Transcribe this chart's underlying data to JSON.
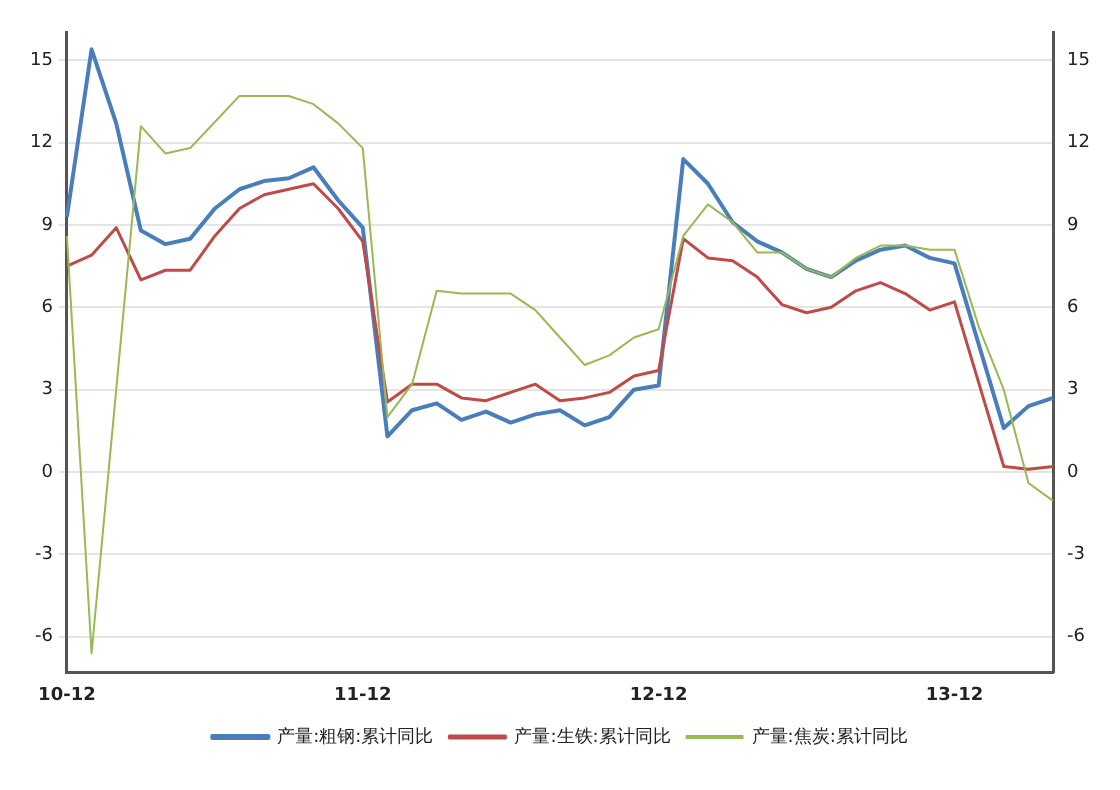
{
  "chart_data": {
    "type": "line",
    "categories": [
      "10-12",
      null,
      null,
      null,
      null,
      null,
      null,
      null,
      null,
      null,
      null,
      null,
      "11-12",
      null,
      null,
      null,
      null,
      null,
      null,
      null,
      null,
      null,
      null,
      null,
      "12-12",
      null,
      null,
      null,
      null,
      null,
      null,
      null,
      null,
      null,
      null,
      null,
      "13-12",
      null,
      null,
      null,
      null
    ],
    "series": [
      {
        "name": "产量:粗钢:累计同比",
        "color": "#4a7ebb",
        "values": [
          9.3,
          15.4,
          12.7,
          8.8,
          8.3,
          8.5,
          9.6,
          10.3,
          10.6,
          10.7,
          11.1,
          9.9,
          8.9,
          1.3,
          2.25,
          2.5,
          1.9,
          2.2,
          1.8,
          2.1,
          2.25,
          1.7,
          2.0,
          3.0,
          3.15,
          11.4,
          10.5,
          9.1,
          8.4,
          8.0,
          7.4,
          7.1,
          7.7,
          8.1,
          8.25,
          7.8,
          7.6,
          4.6,
          1.6,
          2.4,
          2.7
        ]
      },
      {
        "name": "产量:生铁:累计同比",
        "color": "#be4b48",
        "values": [
          7.5,
          7.9,
          8.9,
          7.0,
          7.35,
          7.35,
          8.6,
          9.6,
          10.1,
          10.3,
          10.5,
          9.6,
          8.4,
          2.55,
          3.2,
          3.2,
          2.7,
          2.6,
          2.9,
          3.2,
          2.6,
          2.7,
          2.9,
          3.5,
          3.7,
          8.5,
          7.8,
          7.7,
          7.1,
          6.1,
          5.8,
          6.0,
          6.6,
          6.9,
          6.5,
          5.9,
          6.2,
          3.2,
          0.2,
          0.1,
          0.2
        ]
      },
      {
        "name": "产量:焦炭:累计同比",
        "color": "#98b954",
        "values": [
          8.6,
          -6.6,
          3.0,
          12.6,
          11.6,
          11.8,
          12.75,
          13.7,
          13.7,
          13.7,
          13.4,
          12.7,
          11.8,
          2.0,
          3.2,
          6.6,
          6.5,
          6.5,
          6.5,
          5.9,
          4.9,
          3.9,
          4.25,
          4.9,
          5.2,
          8.6,
          9.75,
          9.1,
          8.0,
          8.0,
          7.4,
          7.1,
          7.8,
          8.25,
          8.25,
          8.1,
          8.1,
          5.25,
          3.0,
          -0.4,
          -1.05
        ]
      }
    ],
    "ylim": [
      -7.3,
      16
    ],
    "yticks": [
      -6,
      -3,
      0,
      3,
      6,
      9,
      12,
      15
    ],
    "y2lim": [
      -7.3,
      16
    ],
    "y2ticks": [
      -6,
      -3,
      0,
      3,
      6,
      9,
      12,
      15
    ],
    "grid": "y",
    "legend": "bottom",
    "marker": "none",
    "line_style": "solid"
  }
}
